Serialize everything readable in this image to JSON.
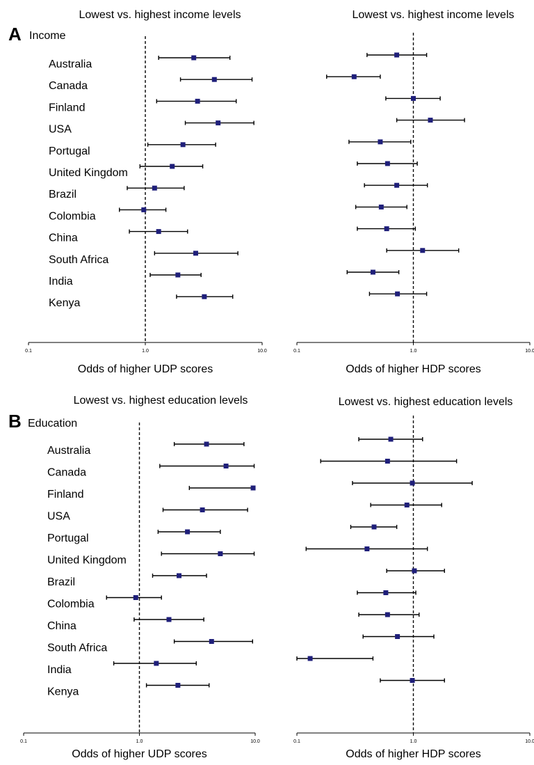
{
  "colors": {
    "marker": "#1f1f7a",
    "line": "#000000"
  },
  "panels": [
    {
      "letter": "A",
      "name": "Income"
    },
    {
      "letter": "B",
      "name": "Education"
    }
  ],
  "countries": [
    "Australia",
    "Canada",
    "Finland",
    "USA",
    "Portugal",
    "United Kingdom",
    "Brazil",
    "Colombia",
    "China",
    "South Africa",
    "India",
    "Kenya"
  ],
  "chart_data": [
    {
      "type": "forest",
      "title": "Lowest vs. highest income levels",
      "xlabel": "Odds of higher UDP scores",
      "xscale": "log",
      "xlim": [
        0.1,
        10.0
      ],
      "ticks": [
        "0.1",
        "1.0",
        "10.0"
      ],
      "reference_line": 1.0,
      "categories": [
        "Australia",
        "Canada",
        "Finland",
        "USA",
        "Portugal",
        "United Kingdom",
        "Brazil",
        "Colombia",
        "China",
        "South Africa",
        "India",
        "Kenya"
      ],
      "or": [
        2.6,
        3.9,
        2.8,
        4.2,
        2.1,
        1.7,
        1.2,
        0.97,
        1.3,
        2.7,
        1.9,
        3.2
      ],
      "lo": [
        1.3,
        2.0,
        1.25,
        2.2,
        1.05,
        0.9,
        0.7,
        0.6,
        0.73,
        1.2,
        1.1,
        1.85
      ],
      "hi": [
        5.3,
        8.2,
        6.0,
        8.5,
        4.0,
        3.1,
        2.15,
        1.5,
        2.3,
        6.2,
        3.0,
        5.6
      ]
    },
    {
      "type": "forest",
      "title": "Lowest vs. highest income levels",
      "xlabel": "Odds of higher HDP scores",
      "xscale": "log",
      "xlim": [
        0.1,
        10.0
      ],
      "ticks": [
        "0.1",
        "1.0",
        "10.0"
      ],
      "reference_line": 1.0,
      "categories": [
        "Australia",
        "Canada",
        "Finland",
        "USA",
        "Portugal",
        "United Kingdom",
        "Brazil",
        "Colombia",
        "China",
        "South Africa",
        "India",
        "Kenya"
      ],
      "or": [
        0.72,
        0.31,
        1.0,
        1.4,
        0.52,
        0.6,
        0.72,
        0.53,
        0.59,
        1.2,
        0.45,
        0.73
      ],
      "lo": [
        0.4,
        0.18,
        0.58,
        0.72,
        0.28,
        0.33,
        0.38,
        0.32,
        0.33,
        0.59,
        0.27,
        0.42
      ],
      "hi": [
        1.3,
        0.52,
        1.7,
        2.75,
        0.95,
        1.08,
        1.32,
        0.88,
        1.04,
        2.45,
        0.75,
        1.3
      ]
    },
    {
      "type": "forest",
      "title": "Lowest vs. highest education levels",
      "xlabel": "Odds of higher UDP scores",
      "xscale": "log",
      "xlim": [
        0.1,
        10.0
      ],
      "ticks": [
        "0.1",
        "1.0",
        "10.0"
      ],
      "reference_line": 1.0,
      "categories": [
        "Australia",
        "Canada",
        "Finland",
        "USA",
        "Portugal",
        "United Kingdom",
        "Brazil",
        "Colombia",
        "China",
        "South Africa",
        "India",
        "Kenya"
      ],
      "or": [
        3.8,
        5.6,
        9.6,
        3.5,
        2.6,
        5.0,
        2.2,
        0.93,
        1.8,
        4.2,
        1.4,
        2.15
      ],
      "lo": [
        2.0,
        1.5,
        2.7,
        1.6,
        1.45,
        1.55,
        1.3,
        0.52,
        0.9,
        2.0,
        0.6,
        1.15
      ],
      "hi": [
        8.0,
        9.8,
        9.8,
        8.6,
        5.0,
        9.8,
        3.8,
        1.55,
        3.6,
        9.5,
        3.1,
        4.0
      ]
    },
    {
      "type": "forest",
      "title": "Lowest vs. highest education levels",
      "xlabel": "Odds of higher HDP scores",
      "xscale": "log",
      "xlim": [
        0.1,
        10.0
      ],
      "ticks": [
        "0.1",
        "1.0",
        "10.0"
      ],
      "reference_line": 1.0,
      "categories": [
        "Australia",
        "Canada",
        "Finland",
        "USA",
        "Portugal",
        "United Kingdom",
        "Brazil",
        "Colombia",
        "China",
        "South Africa",
        "India",
        "Kenya"
      ],
      "or": [
        0.64,
        0.6,
        0.98,
        0.88,
        0.46,
        0.4,
        1.02,
        0.58,
        0.6,
        0.73,
        0.13,
        0.98
      ],
      "lo": [
        0.34,
        0.16,
        0.3,
        0.43,
        0.29,
        0.12,
        0.59,
        0.33,
        0.34,
        0.37,
        0.1,
        0.52
      ],
      "hi": [
        1.2,
        2.35,
        3.2,
        1.75,
        0.72,
        1.32,
        1.85,
        1.05,
        1.12,
        1.5,
        0.45,
        1.85
      ]
    }
  ]
}
